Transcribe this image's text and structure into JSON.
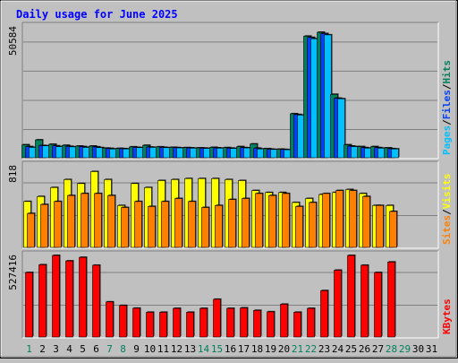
{
  "chart_data": {
    "type": "bar",
    "title": "Daily usage for June 2025",
    "categories": [
      "1",
      "2",
      "3",
      "4",
      "5",
      "6",
      "7",
      "8",
      "9",
      "10",
      "11",
      "12",
      "13",
      "14",
      "15",
      "16",
      "17",
      "18",
      "19",
      "20",
      "21",
      "22",
      "23",
      "24",
      "25",
      "26",
      "27",
      "28",
      "29",
      "30",
      "31"
    ],
    "weekend_days": [
      "1",
      "7",
      "8",
      "14",
      "15",
      "21",
      "22",
      "28",
      "29"
    ],
    "panels": [
      {
        "id": "hits_files_pages",
        "max_label": "50584",
        "ymax": 50584,
        "series": [
          {
            "name": "Hits",
            "color": "#00805c",
            "values": [
              5000,
              6900,
              5200,
              4800,
              4500,
              4500,
              3700,
              3600,
              4200,
              4800,
              4200,
              4000,
              3900,
              3800,
              4000,
              3900,
              4300,
              5300,
              3500,
              3300,
              17000,
              47000,
              48500,
              24500,
              5000,
              4300,
              4300,
              3800,
              0,
              0,
              0
            ]
          },
          {
            "name": "Files",
            "color": "#0040ff",
            "values": [
              4300,
              4700,
              4600,
              4400,
              4300,
              4200,
              3600,
              3500,
              4000,
              4100,
              4000,
              3900,
              3800,
              3700,
              3800,
              3700,
              3900,
              3700,
              3300,
              3200,
              16700,
              46500,
              48000,
              23000,
              4500,
              3900,
              3900,
              3500,
              0,
              0,
              0
            ]
          },
          {
            "name": "Pages",
            "color": "#00c0ff",
            "values": [
              4000,
              4600,
              4300,
              4200,
              4000,
              3900,
              3400,
              3400,
              3900,
              4000,
              3900,
              3800,
              3700,
              3600,
              3700,
              3600,
              3800,
              3400,
              3200,
              3100,
              16500,
              46000,
              47500,
              22800,
              4300,
              3700,
              3700,
              3400,
              0,
              0,
              0
            ]
          }
        ],
        "side_labels": [
          {
            "text": "Pages",
            "color": "#00c0ff"
          },
          {
            "text": "/",
            "color": "#000000"
          },
          {
            "text": "Files",
            "color": "#0040ff"
          },
          {
            "text": "/",
            "color": "#000000"
          },
          {
            "text": "Hits",
            "color": "#00805c"
          }
        ]
      },
      {
        "id": "visits_sites",
        "max_label": "818",
        "ymax": 818,
        "series": [
          {
            "name": "Visits",
            "color": "#ffff00",
            "values": [
              460,
              510,
              600,
              680,
              640,
              760,
              680,
              420,
              640,
              600,
              670,
              680,
              690,
              690,
              690,
              680,
              670,
              570,
              550,
              550,
              450,
              490,
              530,
              550,
              580,
              540,
              420,
              420,
              0,
              0,
              0
            ]
          },
          {
            "name": "Sites",
            "color": "#ff8000",
            "values": [
              340,
              430,
              460,
              520,
              540,
              540,
              520,
              400,
              460,
              410,
              460,
              490,
              460,
              400,
              420,
              480,
              490,
              540,
              520,
              540,
              410,
              450,
              540,
              570,
              570,
              510,
              420,
              360,
              0,
              0,
              0
            ]
          }
        ],
        "side_labels": [
          {
            "text": "Sites",
            "color": "#ff8000"
          },
          {
            "text": "/",
            "color": "#000000"
          },
          {
            "text": "Visits",
            "color": "#ffff00"
          }
        ]
      },
      {
        "id": "kbytes",
        "max_label": "527416",
        "ymax": 527416,
        "series": [
          {
            "name": "KBytes",
            "color": "#ff0000",
            "values": [
              417000,
              467000,
              527416,
              492000,
              515000,
              464000,
              227000,
              204000,
              186000,
              160000,
              160000,
              185000,
              160000,
              185000,
              244000,
              185000,
              188000,
              172000,
              163000,
              212000,
              160000,
              185000,
              300000,
              432000,
              527416,
              464000,
              417000,
              485000,
              0,
              0,
              0
            ]
          }
        ],
        "side_labels": [
          {
            "text": "KBytes",
            "color": "#ff0000"
          }
        ]
      }
    ]
  }
}
